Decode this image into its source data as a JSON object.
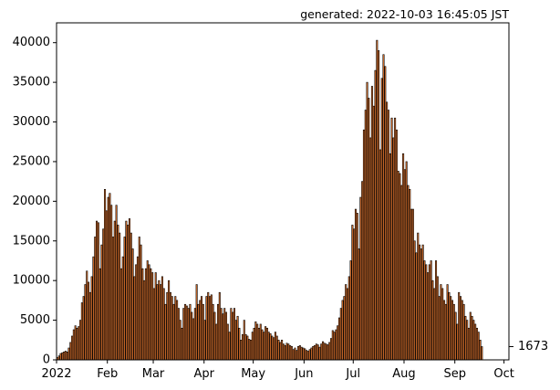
{
  "header": {
    "generated": "generated: 2022-10-03 16:45:05 JST"
  },
  "chart_data": {
    "type": "bar",
    "title": "",
    "xlabel": "",
    "ylabel": "",
    "x_start": "2022-01-01",
    "x_end": "2022-10-03",
    "xlim": [
      "2022-01-01",
      "2022-10-03"
    ],
    "ylim": [
      0,
      42500
    ],
    "grid": false,
    "bar_color": "#e8772e",
    "edge_color": "#000000",
    "x_ticks": [
      {
        "date": "2022-01-01",
        "label": "2022"
      },
      {
        "date": "2022-02-01",
        "label": "Feb"
      },
      {
        "date": "2022-03-01",
        "label": "Mar"
      },
      {
        "date": "2022-04-01",
        "label": "Apr"
      },
      {
        "date": "2022-05-01",
        "label": "May"
      },
      {
        "date": "2022-06-01",
        "label": "Jun"
      },
      {
        "date": "2022-07-01",
        "label": "Jul"
      },
      {
        "date": "2022-08-01",
        "label": "Aug"
      },
      {
        "date": "2022-09-01",
        "label": "Sep"
      },
      {
        "date": "2022-10-01",
        "label": "Oct"
      }
    ],
    "y_ticks": [
      0,
      5000,
      10000,
      15000,
      20000,
      25000,
      30000,
      35000,
      40000
    ],
    "y_tick_labels": [
      "0",
      "5000",
      "10000",
      "15000",
      "20000",
      "25000",
      "30000",
      "35000",
      "40000"
    ],
    "last_value": 1673,
    "last_value_label": "1673",
    "values": [
      300,
      500,
      800,
      900,
      1000,
      1100,
      1000,
      1500,
      2200,
      3000,
      3800,
      4300,
      4000,
      4200,
      5000,
      7200,
      8000,
      9500,
      11200,
      9800,
      8500,
      10500,
      13000,
      15500,
      17500,
      17300,
      11500,
      14500,
      16500,
      21500,
      18800,
      20500,
      21000,
      19500,
      15500,
      17500,
      19500,
      17000,
      16000,
      11500,
      13000,
      15500,
      17500,
      17000,
      17800,
      16000,
      14000,
      10500,
      12000,
      13000,
      15500,
      14500,
      11500,
      10000,
      11500,
      12500,
      12000,
      11500,
      11000,
      9000,
      11000,
      9500,
      10000,
      9500,
      10500,
      9000,
      7000,
      8500,
      10000,
      8500,
      8000,
      7000,
      8000,
      7500,
      6500,
      5000,
      4000,
      6500,
      7000,
      6800,
      6500,
      7000,
      6000,
      5200,
      6500,
      9500,
      7000,
      7500,
      8000,
      7000,
      5000,
      8000,
      8500,
      8000,
      8200,
      7000,
      6000,
      4500,
      7000,
      8500,
      6500,
      5800,
      6500,
      6000,
      4500,
      3500,
      6500,
      6000,
      6500,
      5000,
      5500,
      4000,
      2500,
      3200,
      5000,
      3200,
      3000,
      2600,
      2500,
      3500,
      4000,
      4800,
      4500,
      4000,
      4500,
      3800,
      3500,
      4200,
      4000,
      3500,
      3300,
      3000,
      2800,
      3500,
      3000,
      2500,
      2200,
      2500,
      2000,
      1800,
      2100,
      2000,
      1800,
      1700,
      1300,
      1500,
      1200,
      1700,
      1800,
      1600,
      1500,
      1400,
      1200,
      1100,
      1300,
      1500,
      1700,
      1800,
      2000,
      1900,
      1600,
      2000,
      2300,
      2100,
      2000,
      1900,
      2200,
      2700,
      3700,
      3500,
      3800,
      4300,
      5300,
      6500,
      7500,
      8000,
      9500,
      9000,
      10500,
      12500,
      17000,
      16500,
      19000,
      18500,
      14000,
      20500,
      22500,
      29000,
      31500,
      35000,
      33000,
      28000,
      34500,
      32000,
      36500,
      40300,
      39000,
      26500,
      35500,
      38500,
      37000,
      32500,
      31500,
      26000,
      30500,
      28000,
      30500,
      29000,
      23800,
      23500,
      22000,
      26000,
      24000,
      25000,
      22000,
      21500,
      19000,
      19000,
      15000,
      13500,
      16000,
      14500,
      14000,
      14500,
      12500,
      12000,
      11000,
      12000,
      12500,
      10000,
      9000,
      12500,
      10500,
      8000,
      9500,
      9000,
      7500,
      7000,
      9500,
      8500,
      8000,
      7500,
      7000,
      6000,
      4500,
      8500,
      8000,
      7500,
      7000,
      5500,
      5000,
      4000,
      6000,
      5500,
      5000,
      4500,
      4000,
      3500,
      2500,
      1673
    ]
  }
}
